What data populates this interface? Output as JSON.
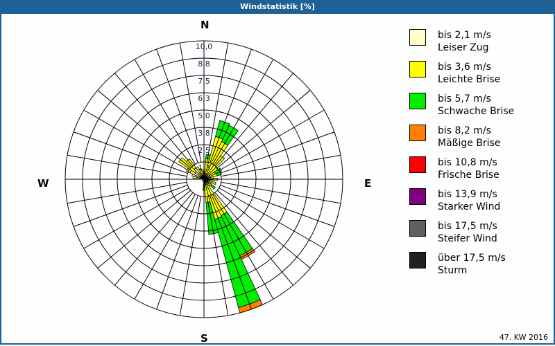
{
  "title": "Windstatistik [%]",
  "footer": "47. KW 2016",
  "cardinals": {
    "n": "N",
    "e": "E",
    "s": "S",
    "w": "W"
  },
  "legend": [
    {
      "color": "#ffffcc",
      "line1": "bis 2,1 m/s",
      "line2": "Leiser Zug"
    },
    {
      "color": "#ffff00",
      "line1": "bis 3,6 m/s",
      "line2": "Leichte Brise"
    },
    {
      "color": "#00ee00",
      "line1": "bis 5,7 m/s",
      "line2": "Schwache Brise"
    },
    {
      "color": "#ff8000",
      "line1": "bis 8,2 m/s",
      "line2": "Mäßige Brise"
    },
    {
      "color": "#ff0000",
      "line1": "bis 10,8 m/s",
      "line2": "Frische Brise"
    },
    {
      "color": "#800080",
      "line1": "bis 13,9 m/s",
      "line2": "Starker Wind"
    },
    {
      "color": "#606060",
      "line1": "bis 17,5 m/s",
      "line2": "Steifer Wind"
    },
    {
      "color": "#202020",
      "line1": "über 17,5 m/s",
      "line2": "Sturm"
    }
  ],
  "chart_data": {
    "type": "polar-stacked-bar (wind rose)",
    "title": "Windstatistik [%]",
    "unit": "%",
    "radial_ticks": [
      "1,3",
      "2,5",
      "3,8",
      "5,0",
      "6,3",
      "7,5",
      "8,8",
      "10,0"
    ],
    "rmax": 10.0,
    "sector_width_deg": 10,
    "series_names": [
      "bis 2,1 m/s",
      "bis 3,6 m/s",
      "bis 5,7 m/s",
      "bis 8,2 m/s"
    ],
    "sectors": [
      {
        "dir": 0,
        "values": [
          0.3,
          0.2,
          0.0,
          0.0
        ]
      },
      {
        "dir": 10,
        "values": [
          0.4,
          1.1,
          0.3,
          0.0
        ]
      },
      {
        "dir": 20,
        "values": [
          0.4,
          2.8,
          1.2,
          0.0
        ]
      },
      {
        "dir": 30,
        "values": [
          0.4,
          2.6,
          1.3,
          0.0
        ]
      },
      {
        "dir": 40,
        "values": [
          0.4,
          1.7,
          0.0,
          0.0
        ]
      },
      {
        "dir": 50,
        "values": [
          0.3,
          0.9,
          0.0,
          0.0
        ]
      },
      {
        "dir": 60,
        "values": [
          0.5,
          0.4,
          0.5,
          0.0
        ]
      },
      {
        "dir": 70,
        "values": [
          0.4,
          0.6,
          0.3,
          0.0
        ]
      },
      {
        "dir": 80,
        "values": [
          0.3,
          0.4,
          0.0,
          0.0
        ]
      },
      {
        "dir": 90,
        "values": [
          0.6,
          0.4,
          0.0,
          0.0
        ]
      },
      {
        "dir": 100,
        "values": [
          0.4,
          0.2,
          0.0,
          0.0
        ]
      },
      {
        "dir": 110,
        "values": [
          0.4,
          0.5,
          0.0,
          0.0
        ]
      },
      {
        "dir": 120,
        "values": [
          0.3,
          0.3,
          0.0,
          0.0
        ]
      },
      {
        "dir": 130,
        "values": [
          0.4,
          0.3,
          0.3,
          0.0
        ]
      },
      {
        "dir": 140,
        "values": [
          0.3,
          0.3,
          0.0,
          0.0
        ]
      },
      {
        "dir": 150,
        "values": [
          0.4,
          2.5,
          3.2,
          0.3
        ]
      },
      {
        "dir": 160,
        "values": [
          0.4,
          2.6,
          6.6,
          0.4
        ]
      },
      {
        "dir": 170,
        "values": [
          0.3,
          1.4,
          2.3,
          0.0
        ]
      },
      {
        "dir": 180,
        "values": [
          0.2,
          0.3,
          0.3,
          0.0
        ]
      },
      {
        "dir": 190,
        "values": [
          0.1,
          0.0,
          0.0,
          0.0
        ]
      },
      {
        "dir": 220,
        "values": [
          0.1,
          0.0,
          0.1,
          0.0
        ]
      },
      {
        "dir": 270,
        "values": [
          0.1,
          0.0,
          0.0,
          0.0
        ]
      },
      {
        "dir": 280,
        "values": [
          0.8,
          0.0,
          0.0,
          0.0
        ]
      },
      {
        "dir": 290,
        "values": [
          0.6,
          0.3,
          0.0,
          0.0
        ]
      },
      {
        "dir": 300,
        "values": [
          1.1,
          0.3,
          0.0,
          0.0
        ]
      },
      {
        "dir": 310,
        "values": [
          0.8,
          1.4,
          0.0,
          0.0
        ]
      },
      {
        "dir": 320,
        "values": [
          1.0,
          0.8,
          0.0,
          0.0
        ]
      },
      {
        "dir": 330,
        "values": [
          0.5,
          0.5,
          0.0,
          0.0
        ]
      },
      {
        "dir": 340,
        "values": [
          0.3,
          0.5,
          0.0,
          0.0
        ]
      },
      {
        "dir": 350,
        "values": [
          0.3,
          0.4,
          0.0,
          0.0
        ]
      }
    ],
    "colors": [
      "#ffffcc",
      "#ffff00",
      "#00ee00",
      "#ff8000"
    ],
    "legend_position": "right"
  }
}
